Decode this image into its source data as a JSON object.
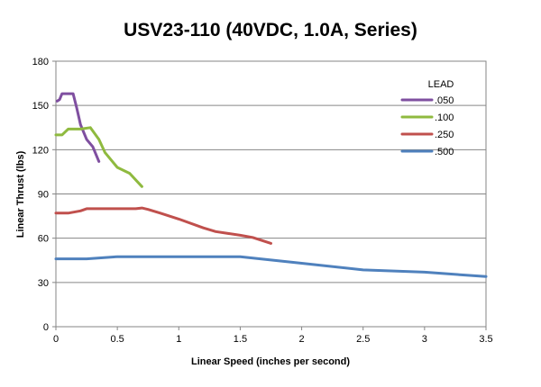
{
  "chart_data": {
    "type": "line",
    "title": "USV23-110 (40VDC, 1.0A, Series)",
    "xlabel": "Linear Speed (inches per second)",
    "ylabel": "Linear Thrust (lbs)",
    "xlim": [
      0,
      3.5
    ],
    "ylim": [
      0,
      180
    ],
    "x_ticks": [
      "0",
      "0.5",
      "1",
      "1.5",
      "2",
      "2.5",
      "3",
      "3.5"
    ],
    "x_tick_values": [
      0,
      0.5,
      1,
      1.5,
      2,
      2.5,
      3,
      3.5
    ],
    "y_ticks": [
      "0",
      "30",
      "60",
      "90",
      "120",
      "150",
      "180"
    ],
    "y_tick_values": [
      0,
      30,
      60,
      90,
      120,
      150,
      180
    ],
    "grid": "horizontal",
    "legend": {
      "title": "LEAD",
      "placement": "top-right"
    },
    "series": [
      {
        "name": ".050",
        "color": "#7f4fa0",
        "points": [
          [
            0.01,
            153
          ],
          [
            0.03,
            154
          ],
          [
            0.05,
            158
          ],
          [
            0.1,
            158
          ],
          [
            0.14,
            158
          ],
          [
            0.17,
            148
          ],
          [
            0.2,
            137
          ],
          [
            0.25,
            127
          ],
          [
            0.3,
            122
          ],
          [
            0.35,
            112
          ]
        ]
      },
      {
        "name": ".100",
        "color": "#8fba3f",
        "points": [
          [
            0,
            130
          ],
          [
            0.05,
            130
          ],
          [
            0.1,
            134
          ],
          [
            0.2,
            134
          ],
          [
            0.28,
            135
          ],
          [
            0.35,
            127
          ],
          [
            0.4,
            118
          ],
          [
            0.5,
            108
          ],
          [
            0.6,
            104
          ],
          [
            0.7,
            95
          ]
        ]
      },
      {
        "name": ".250",
        "color": "#c0504d",
        "points": [
          [
            0,
            77
          ],
          [
            0.1,
            77
          ],
          [
            0.2,
            78.5
          ],
          [
            0.25,
            80
          ],
          [
            0.3,
            80
          ],
          [
            0.5,
            80
          ],
          [
            0.65,
            80
          ],
          [
            0.7,
            80.5
          ],
          [
            0.75,
            79.5
          ],
          [
            0.85,
            77
          ],
          [
            1,
            73
          ],
          [
            1.2,
            67
          ],
          [
            1.3,
            64.5
          ],
          [
            1.5,
            62
          ],
          [
            1.6,
            60.5
          ],
          [
            1.75,
            56.5
          ]
        ]
      },
      {
        "name": ".500",
        "color": "#4f81bd",
        "points": [
          [
            0,
            46
          ],
          [
            0.25,
            46
          ],
          [
            0.5,
            47.5
          ],
          [
            1,
            47.5
          ],
          [
            1.5,
            47.5
          ],
          [
            2,
            43
          ],
          [
            2.5,
            38.5
          ],
          [
            3,
            37
          ],
          [
            3.5,
            34
          ]
        ]
      }
    ]
  }
}
